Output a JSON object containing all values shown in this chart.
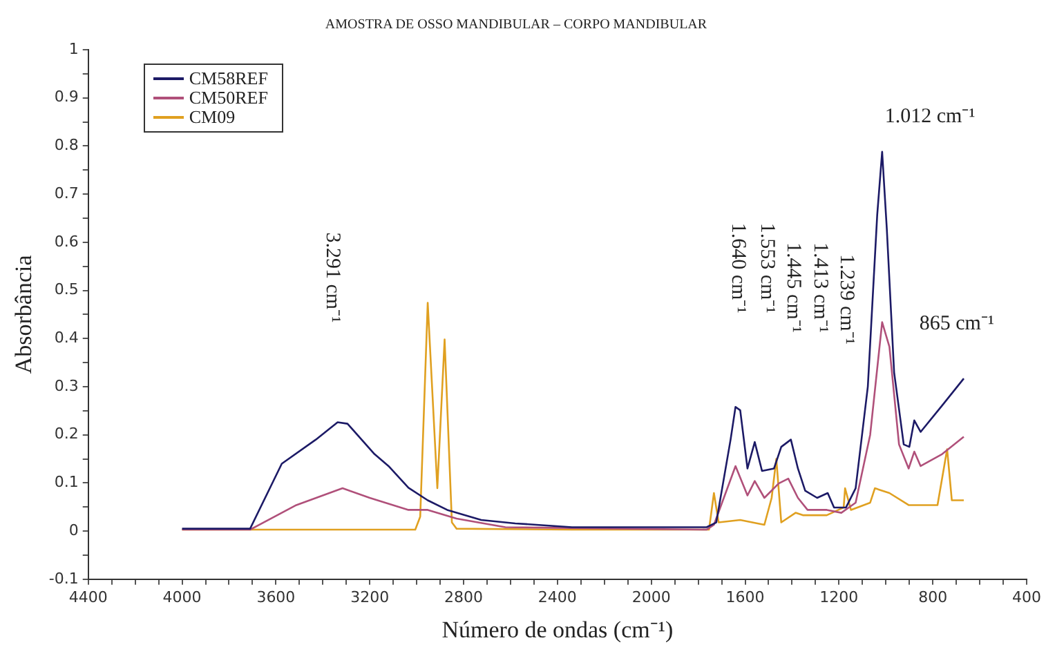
{
  "chart_data": {
    "type": "line",
    "title": "AMOSTRA DE OSSO MANDIBULAR – CORPO MANDIBULAR",
    "xlabel": "Número de ondas (cm⁻¹)",
    "ylabel": "Absorbância",
    "series": [
      {
        "name": "CM58REF",
        "color": "#1c1a66",
        "x": [
          4000,
          3710,
          3575,
          3430,
          3337,
          3295,
          3180,
          3120,
          3035,
          2953,
          2870,
          2725,
          2580,
          2338,
          1764,
          1723,
          1662,
          1641,
          1621,
          1590,
          1559,
          1528,
          1477,
          1446,
          1405,
          1375,
          1344,
          1293,
          1248,
          1221,
          1170,
          1129,
          1077,
          1037,
          1016,
          996,
          965,
          924,
          900,
          879,
          852,
          760,
          668
        ],
        "values": [
          0.005,
          0.005,
          0.14,
          0.19,
          0.226,
          0.223,
          0.16,
          0.135,
          0.09,
          0.064,
          0.044,
          0.023,
          0.016,
          0.008,
          0.008,
          0.018,
          0.19,
          0.258,
          0.251,
          0.13,
          0.185,
          0.125,
          0.13,
          0.175,
          0.19,
          0.13,
          0.084,
          0.069,
          0.079,
          0.049,
          0.049,
          0.089,
          0.3,
          0.657,
          0.788,
          0.627,
          0.33,
          0.18,
          0.175,
          0.23,
          0.206,
          0.261,
          0.317
        ]
      },
      {
        "name": "CM50REF",
        "color": "#b0507a",
        "x": [
          4000,
          3710,
          3513,
          3316,
          3200,
          3035,
          2953,
          2830,
          2622,
          1764,
          1733,
          1641,
          1590,
          1559,
          1518,
          1457,
          1416,
          1375,
          1334,
          1252,
          1190,
          1129,
          1067,
          1016,
          985,
          944,
          903,
          879,
          852,
          760,
          668
        ],
        "values": [
          0.003,
          0.003,
          0.054,
          0.089,
          0.069,
          0.044,
          0.044,
          0.026,
          0.008,
          0.003,
          0.013,
          0.135,
          0.074,
          0.104,
          0.069,
          0.099,
          0.109,
          0.069,
          0.044,
          0.044,
          0.038,
          0.059,
          0.2,
          0.434,
          0.383,
          0.18,
          0.13,
          0.165,
          0.135,
          0.16,
          0.196
        ]
      },
      {
        "name": "CM09",
        "color": "#e0a020",
        "x": [
          4000,
          3006,
          2985,
          2953,
          2912,
          2881,
          2850,
          2830,
          2338,
          1754,
          1733,
          1713,
          1621,
          1518,
          1487,
          1467,
          1446,
          1385,
          1354,
          1252,
          1180,
          1174,
          1149,
          1067,
          1047,
          985,
          903,
          780,
          739,
          719,
          668
        ],
        "values": [
          0.003,
          0.003,
          0.03,
          0.474,
          0.089,
          0.398,
          0.018,
          0.005,
          0.003,
          0.003,
          0.079,
          0.018,
          0.023,
          0.013,
          0.069,
          0.15,
          0.018,
          0.038,
          0.033,
          0.033,
          0.049,
          0.089,
          0.044,
          0.059,
          0.089,
          0.079,
          0.054,
          0.054,
          0.17,
          0.064,
          0.064
        ]
      }
    ],
    "xlim": [
      4400,
      400
    ],
    "xticks": [
      4400,
      {
        "value": 4300,
        "label": null
      },
      {
        "value": 4200,
        "label": null
      },
      {
        "value": 4100,
        "label": null
      },
      4000,
      {
        "value": 3900,
        "label": null
      },
      {
        "value": 3800,
        "label": null
      },
      {
        "value": 3700,
        "label": null
      },
      3600,
      {
        "value": 3500,
        "label": null
      },
      {
        "value": 3400,
        "label": null
      },
      {
        "value": 3300,
        "label": null
      },
      3200,
      {
        "value": 3100,
        "label": null
      },
      {
        "value": 3000,
        "label": null
      },
      {
        "value": 2900,
        "label": null
      },
      2800,
      {
        "value": 2700,
        "label": null
      },
      {
        "value": 2600,
        "label": null
      },
      {
        "value": 2500,
        "label": null
      },
      2400,
      {
        "value": 2300,
        "label": null
      },
      {
        "value": 2200,
        "label": null
      },
      {
        "value": 2100,
        "label": null
      },
      2000,
      {
        "value": 1900,
        "label": null
      },
      {
        "value": 1800,
        "label": null
      },
      {
        "value": 1700,
        "label": null
      },
      1600,
      {
        "value": 1500,
        "label": null
      },
      {
        "value": 1400,
        "label": null
      },
      {
        "value": 1300,
        "label": null
      },
      1200,
      {
        "value": 1100,
        "label": null
      },
      {
        "value": 1000,
        "label": null
      },
      {
        "value": 900,
        "label": null
      },
      800,
      {
        "value": 700,
        "label": null
      },
      {
        "value": 600,
        "label": null
      },
      {
        "value": 500,
        "label": null
      },
      400
    ],
    "ylim": [
      -0.1,
      1
    ],
    "yticks": [
      -0.1,
      {
        "value": -0.05,
        "label": null
      },
      0,
      {
        "value": 0.05,
        "label": null
      },
      0.1,
      {
        "value": 0.15,
        "label": null
      },
      0.2,
      {
        "value": 0.25,
        "label": null
      },
      0.3,
      {
        "value": 0.35,
        "label": null
      },
      0.4,
      {
        "value": 0.45,
        "label": null
      },
      0.5,
      {
        "value": 0.55,
        "label": null
      },
      0.6,
      {
        "value": 0.65,
        "label": null
      },
      0.7,
      {
        "value": 0.75,
        "label": null
      },
      0.8,
      {
        "value": 0.85,
        "label": null
      },
      0.9,
      {
        "value": 0.95,
        "label": null
      },
      1
    ],
    "grid": false,
    "legend": "top left",
    "marker": "none",
    "line_style": "solid",
    "annotations": [
      "3.291 cm⁻¹",
      "1.640 cm⁻¹",
      "1.553 cm⁻¹",
      "1.445 cm⁻¹",
      "1.413 cm⁻¹",
      "1.239 cm⁻¹",
      "1.012 cm⁻¹",
      "865 cm⁻¹"
    ]
  }
}
